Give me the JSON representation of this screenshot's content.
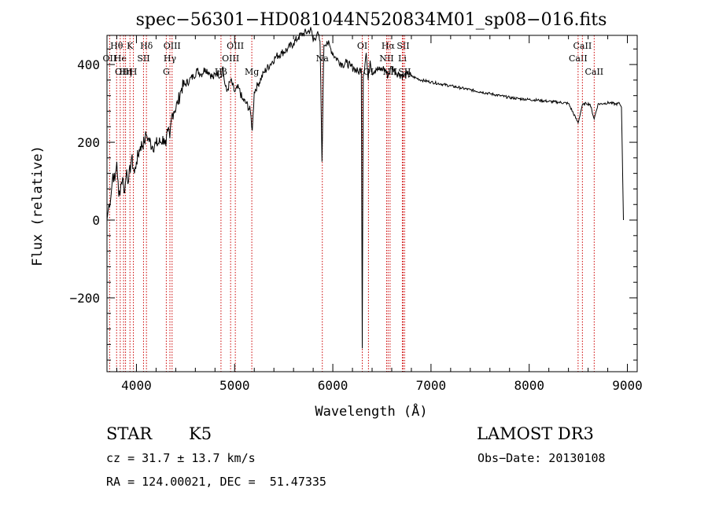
{
  "chart_data": {
    "type": "line",
    "title": "spec−56301−HD081044N520834M01_sp08−016.fits",
    "xlabel": "Wavelength (Å)",
    "ylabel": "Flux (relative)",
    "xlim": [
      3700,
      9100
    ],
    "ylim": [
      -390,
      475
    ],
    "xticks": [
      4000,
      5000,
      6000,
      7000,
      8000,
      9000
    ],
    "xtick_labels": [
      "4000",
      "5000",
      "6000",
      "7000",
      "8000",
      "9000"
    ],
    "yticks": [
      -200,
      0,
      200,
      400
    ],
    "ytick_labels": [
      "−200",
      "0",
      "200",
      "400"
    ],
    "series": [
      {
        "name": "spectrum",
        "x": [
          3700,
          3720,
          3740,
          3760,
          3780,
          3800,
          3820,
          3840,
          3860,
          3880,
          3900,
          3920,
          3950,
          3980,
          4000,
          4040,
          4080,
          4100,
          4120,
          4160,
          4200,
          4240,
          4280,
          4300,
          4320,
          4340,
          4360,
          4380,
          4420,
          4460,
          4500,
          4540,
          4580,
          4620,
          4660,
          4700,
          4740,
          4780,
          4820,
          4860,
          4880,
          4900,
          4920,
          4960,
          5000,
          5040,
          5080,
          5120,
          5160,
          5180,
          5200,
          5240,
          5300,
          5360,
          5420,
          5480,
          5540,
          5600,
          5650,
          5700,
          5750,
          5780,
          5800,
          5840,
          5870,
          5890,
          5900,
          5910,
          5940,
          5980,
          6020,
          6060,
          6100,
          6140,
          6180,
          6220,
          6260,
          6290,
          6300,
          6310,
          6340,
          6360,
          6380,
          6400,
          6440,
          6480,
          6520,
          6563,
          6600,
          6640,
          6680,
          6720,
          6760,
          6800,
          6850,
          6900,
          7000,
          7100,
          7200,
          7300,
          7400,
          7500,
          7600,
          7700,
          7800,
          7900,
          8000,
          8100,
          8200,
          8300,
          8400,
          8498,
          8540,
          8580,
          8620,
          8662,
          8700,
          8760,
          8820,
          8880,
          8920,
          8940,
          8960
        ],
        "values": [
          0,
          40,
          60,
          120,
          100,
          150,
          60,
          90,
          110,
          70,
          130,
          100,
          160,
          120,
          150,
          190,
          200,
          220,
          210,
          190,
          195,
          200,
          210,
          190,
          230,
          210,
          270,
          280,
          300,
          340,
          350,
          360,
          370,
          385,
          375,
          390,
          380,
          365,
          380,
          370,
          395,
          350,
          330,
          360,
          330,
          340,
          310,
          300,
          280,
          230,
          330,
          350,
          380,
          400,
          420,
          430,
          440,
          455,
          470,
          480,
          485,
          490,
          460,
          480,
          460,
          150,
          320,
          450,
          460,
          440,
          420,
          410,
          400,
          405,
          395,
          390,
          380,
          390,
          -330,
          370,
          430,
          360,
          410,
          380,
          390,
          385,
          390,
          370,
          395,
          380,
          375,
          370,
          375,
          370,
          365,
          360,
          355,
          350,
          345,
          340,
          335,
          330,
          325,
          320,
          315,
          312,
          310,
          308,
          305,
          303,
          300,
          250,
          295,
          300,
          298,
          260,
          298,
          300,
          302,
          298,
          300,
          290,
          0
        ]
      }
    ],
    "lines": [
      {
        "x": 3798,
        "label": "Hθ",
        "row": 1,
        "color": "#cc0000"
      },
      {
        "x": 3727,
        "label": "OII",
        "row": 2,
        "color": "#cc0000"
      },
      {
        "x": 3835,
        "label": "He",
        "row": 2,
        "color": "#cc0000"
      },
      {
        "x": 3869,
        "label": "OIII",
        "row": 3,
        "color": "#cc0000"
      },
      {
        "x": 3889,
        "label": "Hη",
        "row": 3,
        "color": "#cc0000"
      },
      {
        "x": 3934,
        "label": "K",
        "row": 1,
        "color": "#cc0000"
      },
      {
        "x": 3969,
        "label": "H",
        "row": 3,
        "color": "#cc0000"
      },
      {
        "x": 4072,
        "label": "SII",
        "row": 2,
        "color": "#cc0000"
      },
      {
        "x": 4102,
        "label": "Hδ",
        "row": 1,
        "color": "#cc0000"
      },
      {
        "x": 4304,
        "label": "G",
        "row": 3,
        "color": "#cc0000"
      },
      {
        "x": 4341,
        "label": "Hγ",
        "row": 2,
        "color": "#cc0000"
      },
      {
        "x": 4363,
        "label": "OIII",
        "row": 1,
        "color": "#cc0000"
      },
      {
        "x": 4861,
        "label": "Hβ",
        "row": 3,
        "color": "#cc0000"
      },
      {
        "x": 4959,
        "label": "OIII",
        "row": 2,
        "color": "#cc0000"
      },
      {
        "x": 5007,
        "label": "OIII",
        "row": 1,
        "color": "#cc0000"
      },
      {
        "x": 5175,
        "label": "Mg",
        "row": 3,
        "color": "#cc0000"
      },
      {
        "x": 5893,
        "label": "Na",
        "row": 2,
        "color": "#cc0000"
      },
      {
        "x": 6300,
        "label": "OI",
        "row": 1,
        "color": "#cc0000"
      },
      {
        "x": 6363,
        "label": "OI",
        "row": 3,
        "color": "#cc0000"
      },
      {
        "x": 6548,
        "label": "NII",
        "row": 2,
        "color": "#cc0000"
      },
      {
        "x": 6563,
        "label": "Hα",
        "row": 1,
        "color": "#cc0000"
      },
      {
        "x": 6583,
        "label": "NII",
        "row": 3,
        "color": "#cc0000"
      },
      {
        "x": 6708,
        "label": "Li",
        "row": 2,
        "color": "#cc0000"
      },
      {
        "x": 6716,
        "label": "SII",
        "row": 1,
        "color": "#cc0000"
      },
      {
        "x": 6731,
        "label": "SII",
        "row": 3,
        "color": "#cc0000"
      },
      {
        "x": 8498,
        "label": "CaII",
        "row": 2,
        "color": "#cc0000"
      },
      {
        "x": 8542,
        "label": "CaII",
        "row": 1,
        "color": "#cc0000"
      },
      {
        "x": 8662,
        "label": "CaII",
        "row": 3,
        "color": "#cc0000"
      }
    ]
  },
  "info": {
    "class": "STAR",
    "subclass": "K5",
    "survey": "LAMOST DR3",
    "cz": "cz = 31.7 ± 13.7 km/s",
    "obs_date": "Obs−Date: 20130108",
    "coords": "RA = 124.00021, DEC =  51.47335"
  }
}
